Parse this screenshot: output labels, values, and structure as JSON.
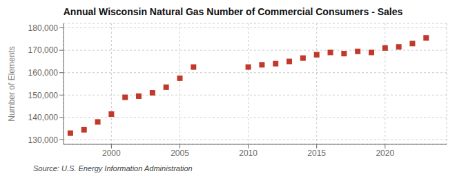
{
  "chart_data": {
    "type": "scatter",
    "title": "Annual Wisconsin Natural Gas Number of Commercial Consumers - Sales",
    "y_label": "Number of Elements",
    "annotation": "Source: U.S. Energy Information Administration",
    "color": "#c0392b",
    "marker": "square",
    "grid": true,
    "xlim": [
      1996.5,
      2024.5
    ],
    "ylim": [
      128000,
      182000
    ],
    "xticks": [
      2000,
      2005,
      2010,
      2015,
      2020
    ],
    "yticks": [
      {
        "value": 130000,
        "label": "130,000"
      },
      {
        "value": 140000,
        "label": "140,000"
      },
      {
        "value": 150000,
        "label": "150,000"
      },
      {
        "value": 160000,
        "label": "160,000"
      },
      {
        "value": 170000,
        "label": "170,000"
      },
      {
        "value": 180000,
        "label": "180,000"
      }
    ],
    "x": [
      1997,
      1998,
      1999,
      2000,
      2001,
      2002,
      2003,
      2004,
      2005,
      2006,
      2010,
      2011,
      2012,
      2013,
      2014,
      2015,
      2016,
      2017,
      2018,
      2019,
      2020,
      2021,
      2022,
      2023
    ],
    "values": [
      133000,
      134500,
      138000,
      141500,
      149000,
      149500,
      151000,
      153500,
      157500,
      162500,
      162500,
      163500,
      164000,
      165000,
      166500,
      168000,
      169000,
      168500,
      169500,
      169000,
      171000,
      171500,
      173000,
      175500
    ]
  }
}
